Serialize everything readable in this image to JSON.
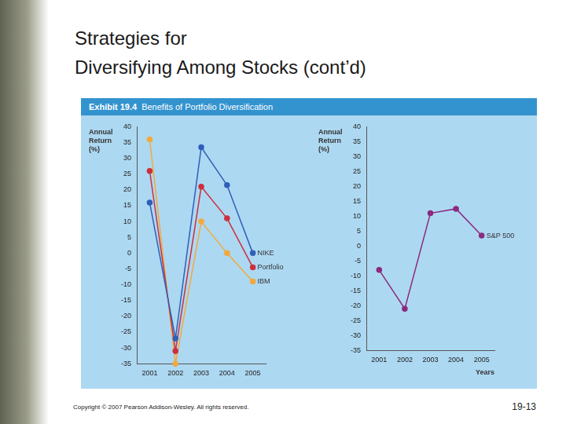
{
  "slide": {
    "title": [
      "Strategies for",
      "Diversifying Among Stocks (cont’d)"
    ],
    "exhibit_number": "Exhibit 19.4",
    "exhibit_title": "Benefits of Portfolio Diversification",
    "copyright": "Copyright © 2007 Pearson Addison-Wesley. All rights reserved.",
    "page": "19-13"
  },
  "chart_data": [
    {
      "type": "line",
      "ylabel": "Annual Return (%)",
      "categories": [
        "2001",
        "2002",
        "2003",
        "2004",
        "2005"
      ],
      "series": [
        {
          "name": "NIKE",
          "color": "#2f5fb8",
          "marker": "circle",
          "line_style": "solid",
          "values": [
            16,
            -27,
            33.5,
            21.5,
            0
          ]
        },
        {
          "name": "Portfolio",
          "color": "#cc2f3d",
          "marker": "circle",
          "line_style": "solid",
          "values": [
            26,
            -31,
            21,
            11,
            -4.5
          ]
        },
        {
          "name": "IBM",
          "color": "#f2a93b",
          "marker": "circle",
          "line_style": "solid",
          "values": [
            36,
            -35,
            10,
            0,
            -9
          ]
        }
      ],
      "ylim": [
        -35,
        40
      ],
      "yticks": [
        -35,
        -30,
        -25,
        -20,
        -15,
        -10,
        -5,
        0,
        5,
        10,
        15,
        20,
        25,
        30,
        35,
        40
      ],
      "grid": false
    },
    {
      "type": "line",
      "ylabel": "Annual Return (%)",
      "xlabel": "Years",
      "categories": [
        "2001",
        "2002",
        "2003",
        "2004",
        "2005"
      ],
      "series": [
        {
          "name": "S&P 500",
          "color": "#8b2a7e",
          "marker": "circle",
          "line_style": "solid",
          "values": [
            -8,
            -21,
            11,
            12.5,
            3.5
          ]
        }
      ],
      "ylim": [
        -35,
        40
      ],
      "yticks": [
        -35,
        -30,
        -25,
        -20,
        -15,
        -10,
        -5,
        0,
        5,
        10,
        15,
        20,
        25,
        30,
        35,
        40
      ],
      "grid": false
    }
  ]
}
